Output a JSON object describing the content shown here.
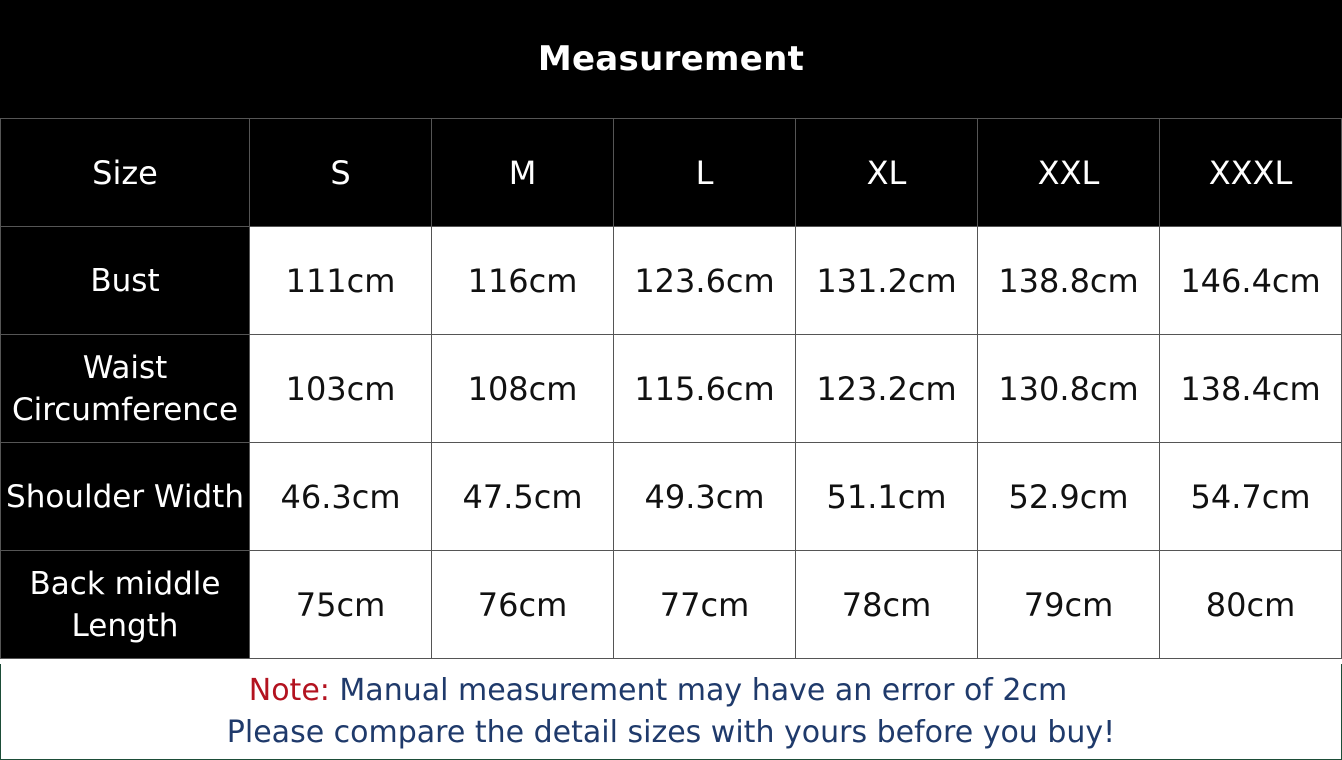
{
  "title": "Measurement",
  "table": {
    "size_header": "Size",
    "sizes": [
      "S",
      "M",
      "L",
      "XL",
      "XXL",
      "XXXL"
    ],
    "rows": [
      {
        "label": "Bust",
        "values": [
          "111cm",
          "116cm",
          "123.6cm",
          "131.2cm",
          "138.8cm",
          "146.4cm"
        ]
      },
      {
        "label_lines": [
          "Waist",
          "Circumference"
        ],
        "values": [
          "103cm",
          "108cm",
          "115.6cm",
          "123.2cm",
          "130.8cm",
          "138.4cm"
        ]
      },
      {
        "label": "Shoulder Width",
        "values": [
          "46.3cm",
          "47.5cm",
          "49.3cm",
          "51.1cm",
          "52.9cm",
          "54.7cm"
        ]
      },
      {
        "label_lines": [
          "Back middle",
          "Length"
        ],
        "values": [
          "75cm",
          "76cm",
          "77cm",
          "78cm",
          "79cm",
          "80cm"
        ]
      }
    ]
  },
  "note": {
    "label": "Note:",
    "line1": " Manual measurement may have an error of 2cm",
    "line2": "Please compare the detail sizes with yours before you buy!"
  },
  "colors": {
    "header_bg": "#000000",
    "header_text": "#ffffff",
    "note_label": "#b3121f",
    "note_text": "#1f3a6b"
  }
}
